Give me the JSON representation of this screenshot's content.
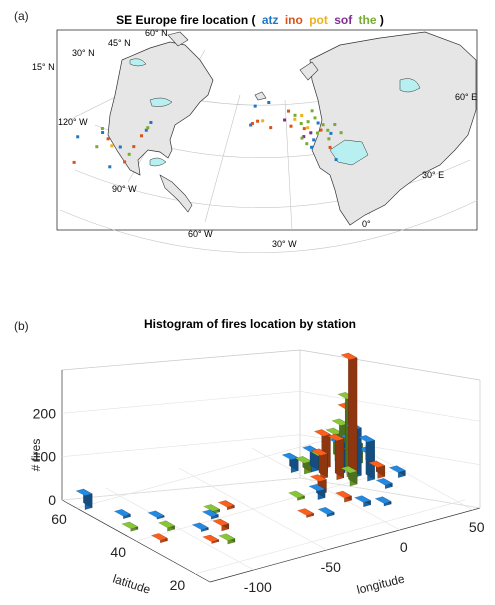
{
  "figure": {
    "panel_a_label": "(a)",
    "panel_b_label": "(b)"
  },
  "panel_a": {
    "title_prefix": "SE Europe fire location (",
    "title_suffix": ")",
    "stations": [
      {
        "code": "atz",
        "color": "#1f77c4"
      },
      {
        "code": "ino",
        "color": "#d95319"
      },
      {
        "code": "pot",
        "color": "#edb120"
      },
      {
        "code": "sof",
        "color": "#7e2f8e"
      },
      {
        "code": "the",
        "color": "#77ac30"
      }
    ],
    "grid_labels": [
      {
        "id": "lat15",
        "text": "15° N"
      },
      {
        "id": "lat30",
        "text": "30° N"
      },
      {
        "id": "lat45",
        "text": "45° N"
      },
      {
        "id": "lat60",
        "text": "60° N"
      },
      {
        "id": "lon120w",
        "text": "120° W"
      },
      {
        "id": "lon90w",
        "text": "90° W"
      },
      {
        "id": "lon60w",
        "text": "60° W"
      },
      {
        "id": "lon30w",
        "text": "30° W"
      },
      {
        "id": "lon0",
        "text": "0°"
      },
      {
        "id": "lon30e",
        "text": "30° E"
      },
      {
        "id": "lon60e",
        "text": "60° E"
      }
    ],
    "colors": {
      "land": "#e6e6e6",
      "water": "#b8f0f2",
      "grid": "#bdbdbd"
    }
  },
  "chart_data": [
    {
      "type": "map",
      "title": "SE Europe fire location ( atz ino pot sof the)",
      "series": [
        {
          "name": "atz",
          "points": [
            [
              -71,
              45
            ],
            [
              -74,
              42
            ],
            [
              -97,
              30
            ],
            [
              -90,
              38
            ],
            [
              -10,
              38
            ],
            [
              27,
              37
            ],
            [
              28,
              41
            ],
            [
              42,
              35
            ],
            [
              38,
              47
            ],
            [
              30,
              50
            ],
            [
              -8,
              48
            ],
            [
              0,
              52
            ],
            [
              -115,
              50
            ],
            [
              -100,
              48
            ]
          ]
        },
        {
          "name": "ino",
          "points": [
            [
              -118,
              38
            ],
            [
              -82,
              36
            ],
            [
              -97,
              44
            ],
            [
              2,
              40
            ],
            [
              -6,
              41
            ],
            [
              14,
              44
            ],
            [
              22,
              45
            ],
            [
              32,
              47
            ],
            [
              38,
              40
            ],
            [
              -9,
              39
            ],
            [
              12,
              51
            ],
            [
              -88,
              30
            ],
            [
              -77,
              40
            ]
          ]
        },
        {
          "name": "pot",
          "points": [
            [
              -3,
              42
            ],
            [
              24,
              46
            ],
            [
              20,
              51
            ],
            [
              16,
              48
            ],
            [
              -95,
              40
            ],
            [
              30,
              45
            ]
          ]
        },
        {
          "name": "sof",
          "points": [
            [
              22,
              41
            ],
            [
              26,
              44
            ],
            [
              10,
              46
            ]
          ]
        },
        {
          "name": "the",
          "points": [
            [
              21,
              40
            ],
            [
              24,
              49
            ],
            [
              28,
              52
            ],
            [
              33,
              50
            ],
            [
              36,
              48
            ],
            [
              26,
              55
            ],
            [
              20,
              47
            ],
            [
              30,
              45
            ],
            [
              40,
              52
            ],
            [
              16,
              50
            ],
            [
              -104,
              42
            ],
            [
              -85,
              33
            ],
            [
              -73,
              43
            ],
            [
              -100,
              50
            ],
            [
              24,
              38
            ],
            [
              37,
              44
            ],
            [
              44,
              49
            ]
          ]
        }
      ]
    },
    {
      "type": "bar3d",
      "title": "Histogram of fires location by station",
      "xlabel": "longitude",
      "ylabel": "latitude",
      "zlabel": "# fires",
      "xlim": [
        -130,
        55
      ],
      "ylim": [
        15,
        65
      ],
      "zlim": [
        0,
        300
      ],
      "xticks": [
        -100,
        -50,
        0,
        50
      ],
      "yticks": [
        20,
        40,
        60
      ],
      "zticks": [
        0,
        100,
        200
      ],
      "series": [
        {
          "name": "atz",
          "bars": [
            [
              -125,
              60,
              32
            ],
            [
              -115,
              52,
              6
            ],
            [
              -100,
              48,
              4
            ],
            [
              -90,
              38,
              5
            ],
            [
              -75,
              42,
              6
            ],
            [
              -10,
              38,
              20
            ],
            [
              0,
              52,
              30
            ],
            [
              10,
              50,
              45
            ],
            [
              20,
              46,
              70
            ],
            [
              25,
              43,
              110
            ],
            [
              28,
              40,
              90
            ],
            [
              32,
              48,
              60
            ],
            [
              40,
              46,
              30
            ],
            [
              45,
              38,
              12
            ],
            [
              30,
              35,
              8
            ],
            [
              -20,
              30,
              6
            ],
            [
              5,
              30,
              10
            ],
            [
              15,
              28,
              6
            ]
          ]
        },
        {
          "name": "ino",
          "bars": [
            [
              -118,
              38,
              6
            ],
            [
              -95,
              32,
              4
            ],
            [
              -80,
              36,
              12
            ],
            [
              -60,
              44,
              6
            ],
            [
              -5,
              40,
              30
            ],
            [
              8,
              46,
              55
            ],
            [
              15,
              44,
              90
            ],
            [
              20,
              42,
              280
            ],
            [
              24,
              45,
              150
            ],
            [
              18,
              50,
              75
            ],
            [
              30,
              46,
              40
            ],
            [
              35,
              40,
              25
            ],
            [
              -30,
              32,
              5
            ],
            [
              0,
              34,
              10
            ]
          ]
        },
        {
          "name": "the",
          "bars": [
            [
              -122,
              46,
              6
            ],
            [
              -105,
              42,
              8
            ],
            [
              -88,
              30,
              8
            ],
            [
              -70,
              44,
              6
            ],
            [
              -20,
              40,
              6
            ],
            [
              5,
              50,
              25
            ],
            [
              12,
              48,
              40
            ],
            [
              22,
              44,
              180
            ],
            [
              26,
              48,
              100
            ],
            [
              30,
              52,
              60
            ],
            [
              36,
              48,
              45
            ],
            [
              40,
              50,
              20
            ],
            [
              16,
              40,
              30
            ]
          ]
        }
      ]
    }
  ],
  "panel_b": {
    "title": "Histogram of fires location by station",
    "xlabel": "longitude",
    "ylabel": "latitude",
    "zlabel": "# fires"
  }
}
